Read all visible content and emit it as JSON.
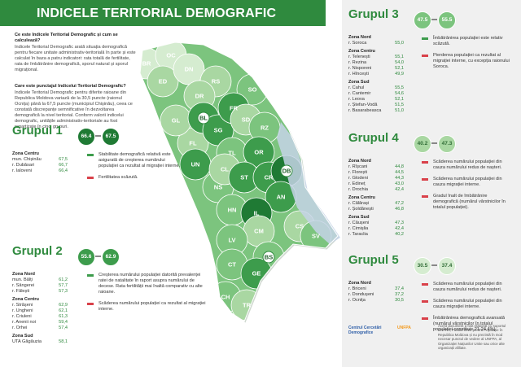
{
  "header": {
    "title": "INDICELE TERITORIAL DEMOGRAFIC"
  },
  "intro": [
    {
      "question": "Ce este Indicele Teritorial Demografic și cum se calculează?",
      "answer": "Indicele Teritorial Demografic arată situația demografică pentru fiecare unitate administrativ-teritorială în parte și este calculat în baza a patru indicatori: rata totală de fertilitate, rata de îmbătrânire demografică, sporul natural și sporul migrațional."
    },
    {
      "question": "Care este punctajul Indicelui Teritorial Demografic?",
      "answer": "Indicele Teritorial Demografic pentru diferite raioane din Republica Moldova variază de la 30,5 puncte (raionul Ocnița) până la 67,5 puncte (municipiul Chișinău), ceea ce constată discrepanțe semnificative în dezvoltarea demografică la nivel teritorial. Conform valorii indicelui demografic, unitățile administrativ-teritoriale au fost repartizate în cinci grupuri."
    }
  ],
  "groups": [
    {
      "title": "Grupul 1",
      "range": [
        "66.4",
        "67.5"
      ],
      "zones": [
        {
          "name": "Zona Centru",
          "items": [
            {
              "name": "mun. Chișinău",
              "value": "67,5"
            },
            {
              "name": "r. Dubăsari",
              "value": "66,7"
            },
            {
              "name": "r. Ialoveni",
              "value": "66,4"
            }
          ]
        }
      ],
      "notes": [
        "Stabilitate demografică relativă este asigurată de creșterea numărului populației ca rezultat al migrației interne.",
        "Fertilitatea scăzută."
      ]
    },
    {
      "title": "Grupul 2",
      "range": [
        "55.6",
        "62.9"
      ],
      "zones": [
        {
          "name": "Zona Nord",
          "items": [
            {
              "name": "mun. Bălți",
              "value": "61,2"
            },
            {
              "name": "r. Sângerei",
              "value": "57,7"
            },
            {
              "name": "r. Fălești",
              "value": "57,3"
            }
          ]
        },
        {
          "name": "Zona Centru",
          "items": [
            {
              "name": "r. Strășeni",
              "value": "62,9"
            },
            {
              "name": "r. Ungheni",
              "value": "62,1"
            },
            {
              "name": "r. Criuleni",
              "value": "61,3"
            },
            {
              "name": "r. Anenii noi",
              "value": "59,4"
            },
            {
              "name": "r. Orhei",
              "value": "57,4"
            }
          ]
        },
        {
          "name": "Zona Sud",
          "items": [
            {
              "name": "UTA Găgăuzia",
              "value": "58,1"
            }
          ]
        }
      ],
      "notes": [
        "Creșterea numărului populației datorită prevalenței ratei de natalitate în raport asupra numărului de decese. Rata fertilității mai înaltă comparativ cu alte raioane.",
        "Scăderea numărului populației ca rezultat al migrației interne."
      ]
    },
    {
      "title": "Grupul 3",
      "range": [
        "47.5",
        "55.5"
      ],
      "zones": [
        {
          "name": "Zona Nord",
          "items": [
            {
              "name": "r. Soroca",
              "value": "55,0"
            }
          ]
        },
        {
          "name": "Zona Centru",
          "items": [
            {
              "name": "r. Telenești",
              "value": "55,1"
            },
            {
              "name": "r. Rezina",
              "value": "54,0"
            },
            {
              "name": "r. Nisporeni",
              "value": "52,1"
            },
            {
              "name": "r. Hîncești",
              "value": "49,9"
            }
          ]
        },
        {
          "name": "Zona Sud",
          "items": [
            {
              "name": "r. Cahul",
              "value": "55,5"
            },
            {
              "name": "r. Cantemir",
              "value": "54,6"
            },
            {
              "name": "r. Leova",
              "value": "52,1"
            },
            {
              "name": "r. Ștefan-Vodă",
              "value": "51,5"
            },
            {
              "name": "r. Basarabeasca",
              "value": "51,0"
            }
          ]
        }
      ],
      "notes": [
        "Îmbătrânirea populației este relativ scăzută.",
        "Pierderea populației ca rezultat al migrației interne, cu excepția raionului Soroca."
      ]
    },
    {
      "title": "Grupul 4",
      "range": [
        "40.2",
        "47.3"
      ],
      "zones": [
        {
          "name": "Zona Nord",
          "items": [
            {
              "name": "r. Rîșcani",
              "value": "44,8"
            },
            {
              "name": "r. Florești",
              "value": "44,5"
            },
            {
              "name": "r. Glodeni",
              "value": "44,3"
            },
            {
              "name": "r. Edineț",
              "value": "43,0"
            },
            {
              "name": "r. Drochia",
              "value": "42,4"
            }
          ]
        },
        {
          "name": "Zona Centru",
          "items": [
            {
              "name": "r. Călărași",
              "value": "47,2"
            },
            {
              "name": "r. Șoldănești",
              "value": "46,8"
            }
          ]
        },
        {
          "name": "Zona Sud",
          "items": [
            {
              "name": "r. Căușeni",
              "value": "47,3"
            },
            {
              "name": "r. Cimișlia",
              "value": "42,4"
            },
            {
              "name": "r. Taraclia",
              "value": "40,2"
            }
          ]
        }
      ],
      "notes": [
        "Scăderea numărului populației din cauza numărului redus de nașteri.",
        "Scăderea numărului populației din cauza migrației interne.",
        "Gradul înalt de îmbătrânire demografică (numărul vârstnicilor în totalul populației)."
      ]
    },
    {
      "title": "Grupul 5",
      "range": [
        "30.5",
        "37.4"
      ],
      "zones": [
        {
          "name": "Zona Nord",
          "items": [
            {
              "name": "r. Briceni",
              "value": "37,4"
            },
            {
              "name": "r. Dondușeni",
              "value": "37,2"
            },
            {
              "name": "r. Ocnița",
              "value": "30,5"
            }
          ]
        }
      ],
      "notes": [
        "Scăderea numărului populației din cauza numărului redus de nașteri.",
        "Scăderea numărului populației din cauza migrației interne.",
        "Îmbătrânirea demografică avansată (numărul vârstnicilor în totalul populației constituie 21-24,4%)"
      ]
    }
  ],
  "map": {
    "labels": [
      "BR",
      "OC",
      "ED",
      "DN",
      "RS",
      "SO",
      "DR",
      "FL",
      "GL",
      "BL",
      "SG",
      "FR",
      "SD",
      "RZ",
      "UN",
      "TL",
      "OR",
      "NS",
      "CL",
      "ST",
      "CR",
      "DB",
      "AN",
      "HN",
      "IL",
      "CM",
      "CS",
      "LV",
      "SV",
      "BS",
      "CT",
      "GE",
      "CH",
      "TR"
    ]
  },
  "footer": {
    "text": "Acest document a fost elaborat cu suportul UNFPA, Fondul ONU pentru Populație în Republica Moldova și nu prezintă în mod necesar punctul de vedere al UNFPA, al Organizației Națiunilor Unite sau orice alte organizații afiliate.",
    "logos": [
      "Centrul Cercetări Demografice",
      "UNFPA"
    ]
  }
}
